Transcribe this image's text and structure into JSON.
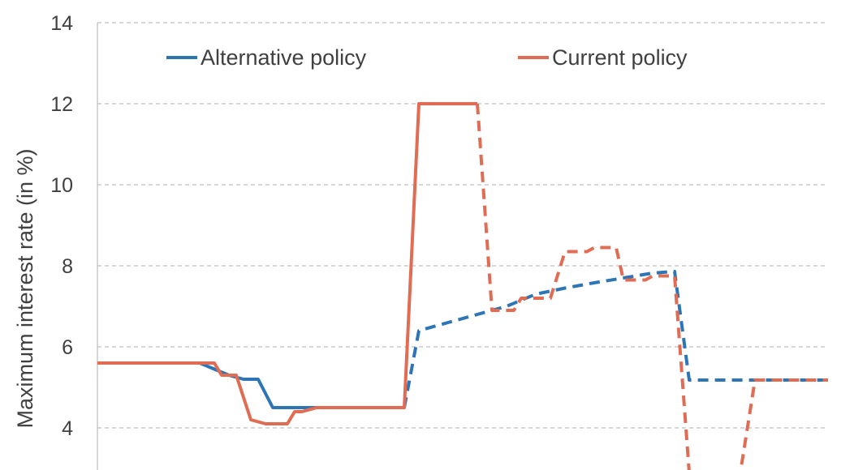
{
  "chart_data": {
    "type": "line",
    "ylabel": "Maximum interest rate (in %)",
    "ylim": [
      3.1,
      14
    ],
    "yticks": [
      4,
      6,
      8,
      10,
      12,
      14
    ],
    "grid": true,
    "legend_position": "top",
    "x_axis_labels_visible": false,
    "series": [
      {
        "name": "Alternative policy",
        "color": "#2e75b6",
        "solid_points": [
          [
            0,
            5.6
          ],
          [
            14,
            5.6
          ],
          [
            16,
            5.45
          ],
          [
            18,
            5.3
          ],
          [
            20,
            5.2
          ],
          [
            22,
            5.2
          ],
          [
            24,
            4.5
          ],
          [
            40,
            4.5
          ],
          [
            42,
            4.5
          ]
        ],
        "dashed_points": [
          [
            42,
            4.5
          ],
          [
            44,
            6.4
          ],
          [
            48,
            6.6
          ],
          [
            52,
            6.8
          ],
          [
            56,
            7.0
          ],
          [
            60,
            7.3
          ],
          [
            64,
            7.45
          ],
          [
            68,
            7.58
          ],
          [
            72,
            7.7
          ],
          [
            76,
            7.82
          ],
          [
            79,
            7.86
          ],
          [
            81,
            5.18
          ],
          [
            100,
            5.18
          ]
        ]
      },
      {
        "name": "Current policy",
        "color": "#e06c54",
        "solid_points": [
          [
            0,
            5.6
          ],
          [
            16,
            5.6
          ],
          [
            17,
            5.3
          ],
          [
            19,
            5.3
          ],
          [
            21,
            4.2
          ],
          [
            23,
            4.1
          ],
          [
            26,
            4.1
          ],
          [
            27,
            4.4
          ],
          [
            28,
            4.4
          ],
          [
            30,
            4.5
          ],
          [
            42,
            4.5
          ],
          [
            44,
            12.0
          ],
          [
            52,
            12.0
          ]
        ],
        "dashed_points": [
          [
            52,
            12.0
          ],
          [
            54,
            6.9
          ],
          [
            57,
            6.9
          ],
          [
            58,
            7.2
          ],
          [
            60,
            7.2
          ],
          [
            62,
            7.2
          ],
          [
            64,
            8.35
          ],
          [
            67,
            8.35
          ],
          [
            68,
            8.45
          ],
          [
            71,
            8.45
          ],
          [
            72,
            7.65
          ],
          [
            75,
            7.65
          ],
          [
            76,
            7.75
          ],
          [
            79,
            7.75
          ],
          [
            81,
            2.9
          ],
          [
            88,
            2.9
          ],
          [
            90,
            5.18
          ],
          [
            100,
            5.18
          ]
        ]
      }
    ]
  }
}
